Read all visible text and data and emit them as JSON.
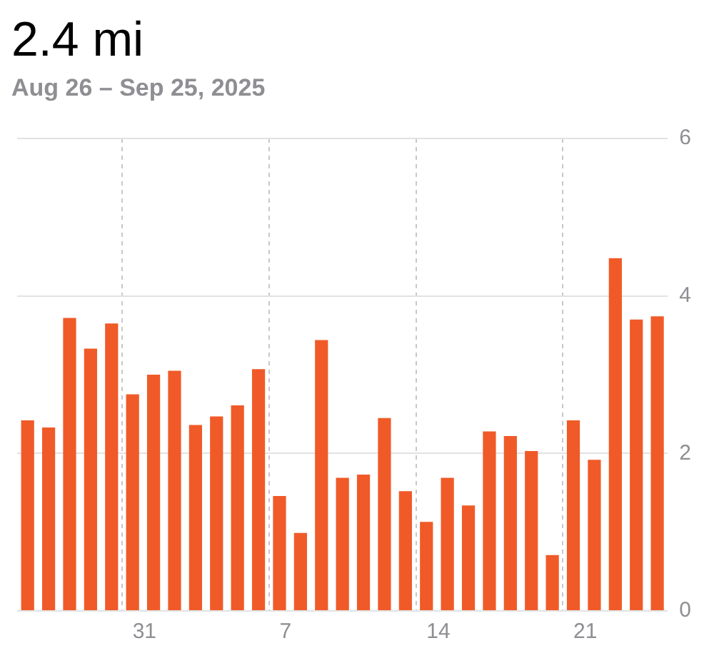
{
  "chart_data": {
    "type": "bar",
    "title": "2.4 mi",
    "subtitle": "Aug 26 – Sep 25, 2025",
    "categories": [
      null,
      null,
      null,
      null,
      null,
      "31",
      null,
      null,
      null,
      null,
      null,
      null,
      "7",
      null,
      null,
      null,
      null,
      null,
      null,
      "14",
      null,
      null,
      null,
      null,
      null,
      null,
      "21",
      null,
      null,
      null,
      null
    ],
    "values": [
      2.42,
      2.33,
      3.72,
      3.33,
      3.65,
      2.75,
      3.0,
      3.05,
      2.36,
      2.47,
      2.61,
      3.07,
      1.46,
      0.99,
      3.44,
      1.69,
      1.73,
      2.45,
      1.52,
      1.13,
      1.69,
      1.34,
      2.28,
      2.22,
      2.03,
      0.71,
      2.42,
      1.92,
      4.48,
      3.7,
      3.74
    ],
    "color": "#f05a28",
    "ylim": [
      0,
      6
    ],
    "yticks": [
      0,
      2,
      4,
      6
    ],
    "grid": true,
    "legend": false
  }
}
